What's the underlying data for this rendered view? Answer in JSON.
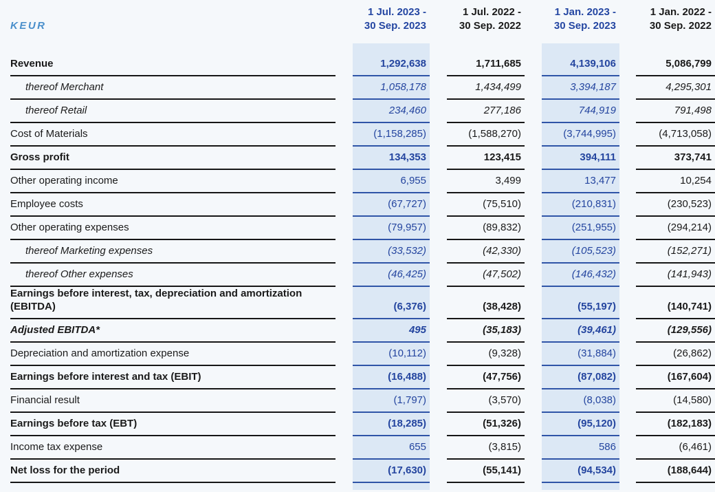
{
  "unit_label": "KEUR",
  "colors": {
    "page_background": "#f5f8fb",
    "highlight_column_background": "#dce8f5",
    "accent_blue_text": "#24459f",
    "header_blue": "#2446a2",
    "unit_label_blue": "#4a8fcb",
    "rule_blue": "#2f54a7",
    "rule_dark": "#161616"
  },
  "table": {
    "columns": [
      {
        "label": "1 Jul. 2023 -\n30 Sep. 2023",
        "highlighted": true
      },
      {
        "label": "1 Jul. 2022 -\n30 Sep. 2022",
        "highlighted": false
      },
      {
        "label": "1 Jan. 2023 -\n30 Sep. 2023",
        "highlighted": true
      },
      {
        "label": "1 Jan. 2022 -\n30 Sep. 2022",
        "highlighted": false
      }
    ],
    "rows": [
      {
        "label": "Revenue",
        "style": "bold",
        "values": [
          "1,292,638",
          "1,711,685",
          "4,139,106",
          "5,086,799"
        ]
      },
      {
        "label": "thereof Merchant",
        "style": "thereof",
        "values": [
          "1,058,178",
          "1,434,499",
          "3,394,187",
          "4,295,301"
        ]
      },
      {
        "label": "thereof Retail",
        "style": "thereof",
        "values": [
          "234,460",
          "277,186",
          "744,919",
          "791,498"
        ]
      },
      {
        "label": "Cost of Materials",
        "style": "normal",
        "values": [
          "(1,158,285)",
          "(1,588,270)",
          "(3,744,995)",
          "(4,713,058)"
        ]
      },
      {
        "label": "Gross profit",
        "style": "bold",
        "values": [
          "134,353",
          "123,415",
          "394,111",
          "373,741"
        ]
      },
      {
        "label": "Other operating income",
        "style": "normal",
        "values": [
          "6,955",
          "3,499",
          "13,477",
          "10,254"
        ]
      },
      {
        "label": "Employee costs",
        "style": "normal",
        "values": [
          "(67,727)",
          "(75,510)",
          "(210,831)",
          "(230,523)"
        ]
      },
      {
        "label": "Other operating expenses",
        "style": "normal",
        "values": [
          "(79,957)",
          "(89,832)",
          "(251,955)",
          "(294,214)"
        ]
      },
      {
        "label": "thereof Marketing expenses",
        "style": "thereof",
        "values": [
          "(33,532)",
          "(42,330)",
          "(105,523)",
          "(152,271)"
        ]
      },
      {
        "label": "thereof Other expenses",
        "style": "thereof",
        "values": [
          "(46,425)",
          "(47,502)",
          "(146,432)",
          "(141,943)"
        ]
      },
      {
        "label": "Earnings before interest, tax, depreciation and amortization\n(EBITDA)",
        "style": "bold",
        "values": [
          "(6,376)",
          "(38,428)",
          "(55,197)",
          "(140,741)"
        ]
      },
      {
        "label": "Adjusted EBITDA*",
        "style": "bold-italic",
        "values": [
          "495",
          "(35,183)",
          "(39,461)",
          "(129,556)"
        ]
      },
      {
        "label": "Depreciation and amortization expense",
        "style": "normal",
        "values": [
          "(10,112)",
          "(9,328)",
          "(31,884)",
          "(26,862)"
        ]
      },
      {
        "label": "Earnings before interest and tax (EBIT)",
        "style": "bold",
        "values": [
          "(16,488)",
          "(47,756)",
          "(87,082)",
          "(167,604)"
        ]
      },
      {
        "label": "Financial result",
        "style": "normal",
        "values": [
          "(1,797)",
          "(3,570)",
          "(8,038)",
          "(14,580)"
        ]
      },
      {
        "label": "Earnings before tax (EBT)",
        "style": "bold",
        "values": [
          "(18,285)",
          "(51,326)",
          "(95,120)",
          "(182,183)"
        ]
      },
      {
        "label": "Income tax expense",
        "style": "normal",
        "values": [
          "655",
          "(3,815)",
          "586",
          "(6,461)"
        ]
      },
      {
        "label": "Net loss for the period",
        "style": "bold",
        "values": [
          "(17,630)",
          "(55,141)",
          "(94,534)",
          "(188,644)"
        ]
      }
    ]
  }
}
